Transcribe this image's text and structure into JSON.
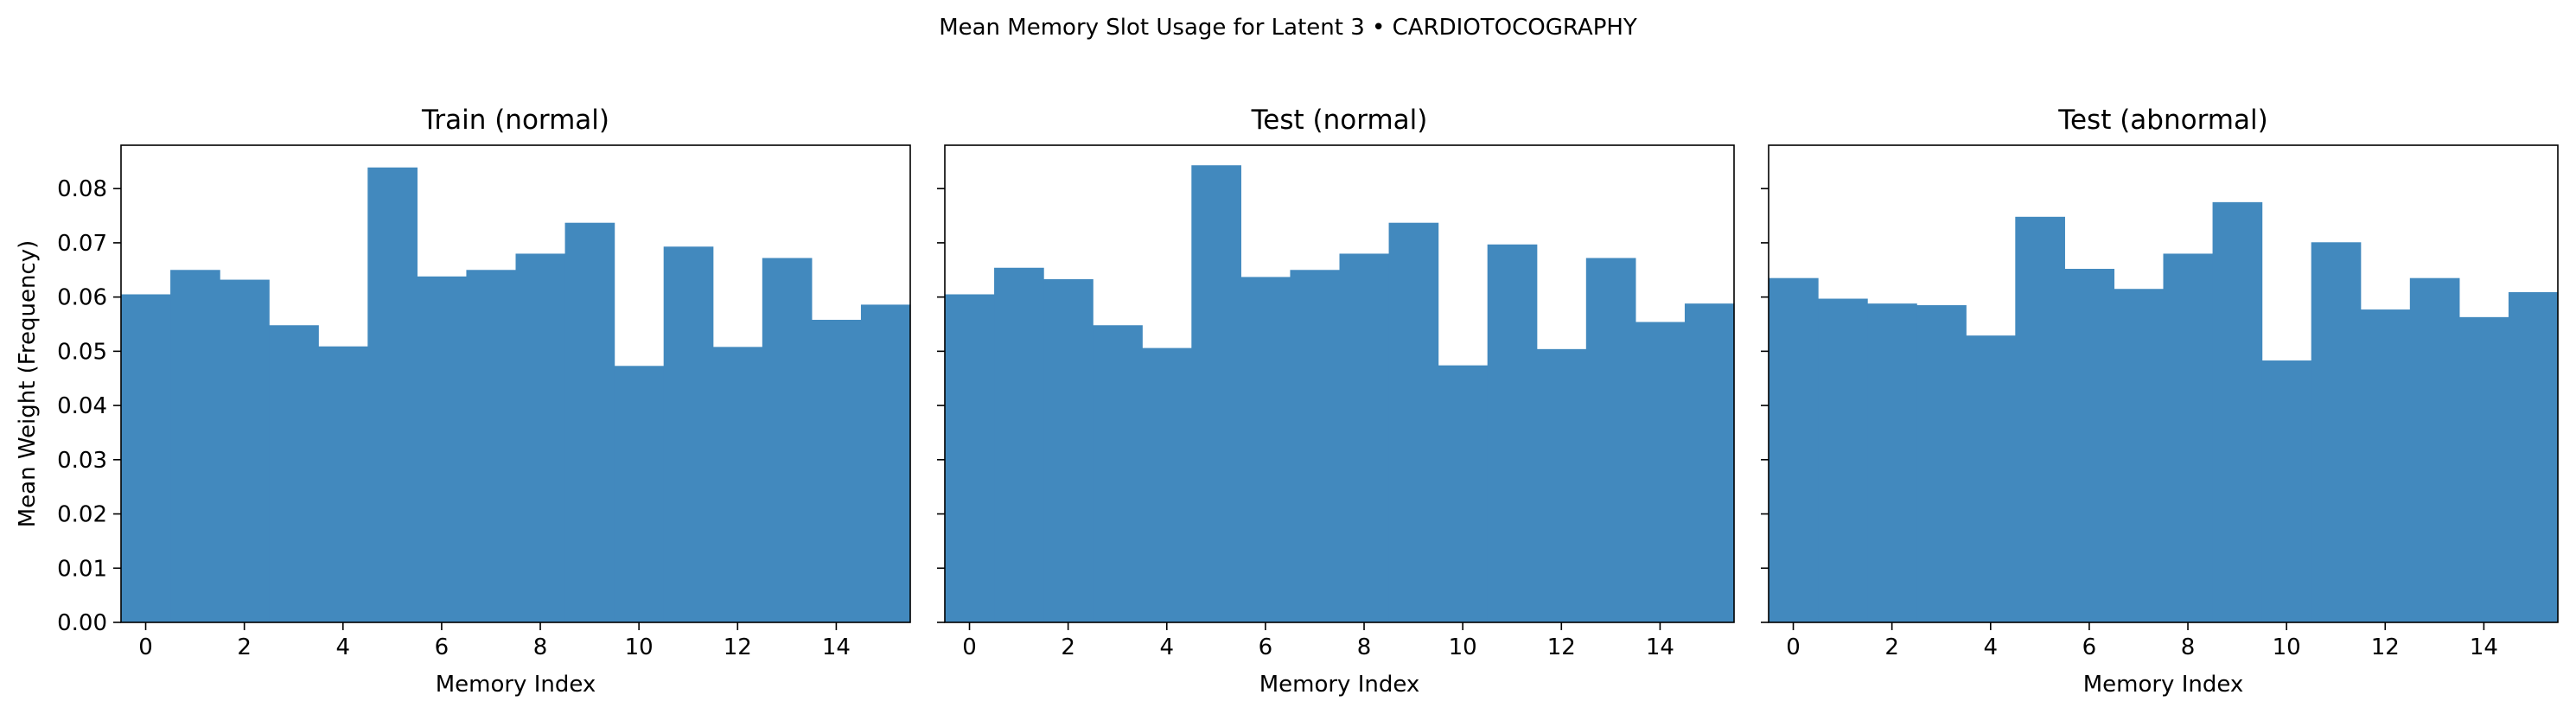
{
  "suptitle": "Mean Memory Slot Usage for Latent 3 • CARDIOTOCOGRAPHY",
  "bar_color": "#4289be",
  "chart_data": [
    {
      "type": "bar",
      "title": "Train (normal)",
      "xlabel": "Memory Index",
      "ylabel": "Mean Weight (Frequency)",
      "x": [
        0,
        1,
        2,
        3,
        4,
        5,
        6,
        7,
        8,
        9,
        10,
        11,
        12,
        13,
        14,
        15
      ],
      "values": [
        0.0605,
        0.065,
        0.0632,
        0.0548,
        0.0509,
        0.0839,
        0.0638,
        0.065,
        0.068,
        0.0737,
        0.0473,
        0.0693,
        0.0508,
        0.0672,
        0.0558,
        0.0586
      ],
      "xticks": [
        0,
        2,
        4,
        6,
        8,
        10,
        12,
        14
      ],
      "yticks": [
        "0.00",
        "0.01",
        "0.02",
        "0.03",
        "0.04",
        "0.05",
        "0.06",
        "0.07",
        "0.08"
      ],
      "xlim": [
        -0.5,
        15.5
      ],
      "ylim": [
        0,
        0.088
      ],
      "bar_width": 1.0,
      "grid": false,
      "legend": "none"
    },
    {
      "type": "bar",
      "title": "Test (normal)",
      "xlabel": "Memory Index",
      "ylabel": "",
      "x": [
        0,
        1,
        2,
        3,
        4,
        5,
        6,
        7,
        8,
        9,
        10,
        11,
        12,
        13,
        14,
        15
      ],
      "values": [
        0.0605,
        0.0654,
        0.0633,
        0.0548,
        0.0506,
        0.0843,
        0.0637,
        0.065,
        0.068,
        0.0737,
        0.0474,
        0.0697,
        0.0504,
        0.0672,
        0.0554,
        0.0588
      ],
      "xticks": [
        0,
        2,
        4,
        6,
        8,
        10,
        12,
        14
      ],
      "yticks": [
        "0.00",
        "0.01",
        "0.02",
        "0.03",
        "0.04",
        "0.05",
        "0.06",
        "0.07",
        "0.08"
      ],
      "xlim": [
        -0.5,
        15.5
      ],
      "ylim": [
        0,
        0.088
      ],
      "bar_width": 1.0,
      "grid": false,
      "legend": "none"
    },
    {
      "type": "bar",
      "title": "Test (abnormal)",
      "xlabel": "Memory Index",
      "ylabel": "",
      "x": [
        0,
        1,
        2,
        3,
        4,
        5,
        6,
        7,
        8,
        9,
        10,
        11,
        12,
        13,
        14,
        15
      ],
      "values": [
        0.0635,
        0.0597,
        0.0588,
        0.0585,
        0.0529,
        0.0748,
        0.0652,
        0.0615,
        0.068,
        0.0775,
        0.0483,
        0.0701,
        0.0577,
        0.0635,
        0.0563,
        0.0609
      ],
      "xticks": [
        0,
        2,
        4,
        6,
        8,
        10,
        12,
        14
      ],
      "yticks": [
        "0.00",
        "0.01",
        "0.02",
        "0.03",
        "0.04",
        "0.05",
        "0.06",
        "0.07",
        "0.08"
      ],
      "xlim": [
        -0.5,
        15.5
      ],
      "ylim": [
        0,
        0.088
      ],
      "bar_width": 1.0,
      "grid": false,
      "legend": "none"
    }
  ]
}
